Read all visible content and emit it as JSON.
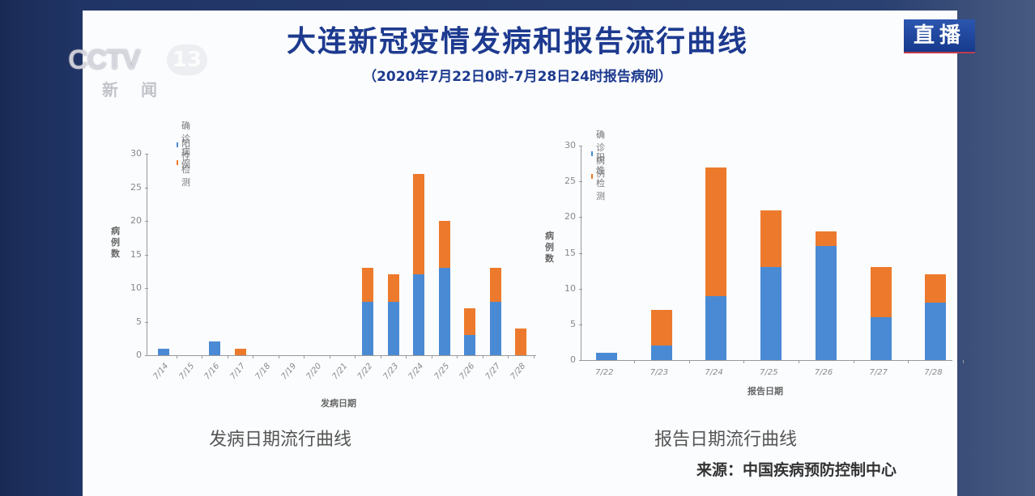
{
  "broadcast": {
    "channel_logo": "CCTV",
    "channel_number": "13",
    "channel_name": "新闻",
    "live_badge": "直播"
  },
  "slide": {
    "title": "大连新冠疫情发病和报告流行曲线",
    "subtitle": "（2020年7月22日0时-7月28日24时报告病例）",
    "source": "来源：中国疾病预防控制中心"
  },
  "colors": {
    "confirmed": "#4a8ad4",
    "positive": "#ed7a2c",
    "title": "#1d3a8f",
    "background": "#203566"
  },
  "chart_data": [
    {
      "type": "bar",
      "stacked": true,
      "title": "发病日期流行曲线",
      "xlabel": "发病日期",
      "ylabel": "病例数",
      "ylim": [
        0,
        30
      ],
      "yticks": [
        0,
        5,
        10,
        15,
        20,
        25,
        30
      ],
      "legend_position": "top-left",
      "grid": false,
      "categories": [
        "7/14",
        "7/15",
        "7/16",
        "7/17",
        "7/18",
        "7/19",
        "7/20",
        "7/21",
        "7/22",
        "7/23",
        "7/24",
        "7/25",
        "7/26",
        "7/27",
        "7/28"
      ],
      "series": [
        {
          "name": "确诊病例",
          "color": "#4a8ad4",
          "values": [
            1,
            0,
            2,
            0,
            0,
            0,
            0,
            0,
            8,
            8,
            12,
            13,
            3,
            8,
            0
          ]
        },
        {
          "name": "阳性检测",
          "color": "#ed7a2c",
          "values": [
            0,
            0,
            0,
            1,
            0,
            0,
            0,
            0,
            5,
            4,
            15,
            7,
            4,
            5,
            4
          ]
        }
      ]
    },
    {
      "type": "bar",
      "stacked": true,
      "title": "报告日期流行曲线",
      "xlabel": "报告日期",
      "ylabel": "病例数",
      "ylim": [
        0,
        30
      ],
      "yticks": [
        0,
        5,
        10,
        15,
        20,
        25,
        30
      ],
      "legend_position": "top-left",
      "grid": false,
      "categories": [
        "7/22",
        "7/23",
        "7/24",
        "7/25",
        "7/26",
        "7/27",
        "7/28"
      ],
      "series": [
        {
          "name": "确诊病例",
          "color": "#4a8ad4",
          "values": [
            1,
            2,
            9,
            13,
            16,
            6,
            8
          ]
        },
        {
          "name": "阳性检测",
          "color": "#ed7a2c",
          "values": [
            0,
            5,
            18,
            8,
            2,
            7,
            4
          ]
        }
      ]
    }
  ]
}
